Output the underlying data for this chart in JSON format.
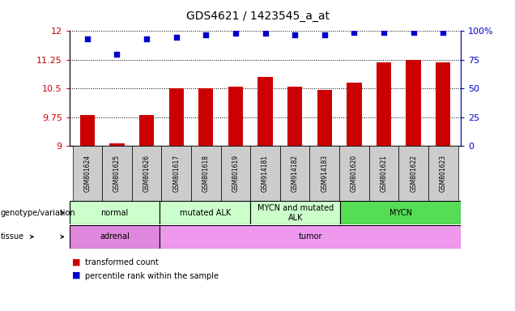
{
  "title": "GDS4621 / 1423545_a_at",
  "samples": [
    "GSM801624",
    "GSM801625",
    "GSM801626",
    "GSM801617",
    "GSM801618",
    "GSM801619",
    "GSM914181",
    "GSM914182",
    "GSM914183",
    "GSM801620",
    "GSM801621",
    "GSM801622",
    "GSM801623"
  ],
  "bar_values": [
    9.82,
    9.07,
    9.82,
    10.5,
    10.5,
    10.55,
    10.8,
    10.55,
    10.47,
    10.65,
    11.18,
    11.25,
    11.18
  ],
  "dot_values": [
    93,
    80,
    93,
    95,
    97,
    98,
    98,
    97,
    97,
    99,
    99,
    99,
    99
  ],
  "ylim_left": [
    9.0,
    12.0
  ],
  "ylim_right": [
    0,
    100
  ],
  "yticks_left": [
    9.0,
    9.75,
    10.5,
    11.25,
    12.0
  ],
  "yticks_right": [
    0,
    25,
    50,
    75,
    100
  ],
  "ytick_labels_left": [
    "9",
    "9.75",
    "10.5",
    "11.25",
    "12"
  ],
  "ytick_labels_right": [
    "0",
    "25",
    "50",
    "75",
    "100%"
  ],
  "bar_color": "#cc0000",
  "dot_color": "#0000cc",
  "bar_width": 0.5,
  "genotype_groups": [
    {
      "label": "normal",
      "start": 0,
      "end": 3,
      "color": "#ccffcc"
    },
    {
      "label": "mutated ALK",
      "start": 3,
      "end": 6,
      "color": "#ccffcc"
    },
    {
      "label": "MYCN and mutated\nALK",
      "start": 6,
      "end": 9,
      "color": "#ccffcc"
    },
    {
      "label": "MYCN",
      "start": 9,
      "end": 13,
      "color": "#55dd55"
    }
  ],
  "tissue_groups": [
    {
      "label": "adrenal",
      "start": 0,
      "end": 3,
      "color": "#dd88dd"
    },
    {
      "label": "tumor",
      "start": 3,
      "end": 13,
      "color": "#ee99ee"
    }
  ],
  "legend_items": [
    {
      "label": "transformed count",
      "color": "#cc0000"
    },
    {
      "label": "percentile rank within the sample",
      "color": "#0000cc"
    }
  ],
  "tick_label_color_left": "#cc0000",
  "tick_label_color_right": "#0000cc",
  "xtick_bg_color": "#cccccc"
}
